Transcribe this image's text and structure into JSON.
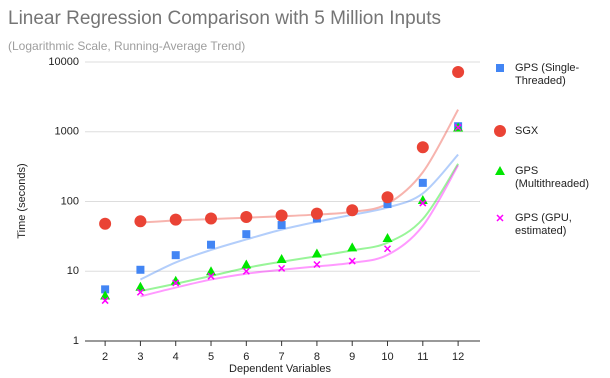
{
  "chart_data": {
    "type": "scatter",
    "title": "Linear Regression Comparison with 5 Million Inputs",
    "subtitle": "(Logarithmic Scale, Running-Average Trend)",
    "x_label": "Dependent Variables",
    "y_label": "Time (seconds)",
    "x": [
      2,
      3,
      4,
      5,
      6,
      7,
      8,
      9,
      10,
      11,
      12
    ],
    "xlim": [
      1.43,
      12.62
    ],
    "xticks": [
      2,
      3,
      4,
      5,
      6,
      7,
      8,
      9,
      10,
      11,
      12
    ],
    "ylim": [
      1,
      10000
    ],
    "yticks": [
      1,
      10,
      100,
      1000,
      10000
    ],
    "log_y": true,
    "grid": true,
    "trend": "running-average",
    "legend": "right",
    "series": [
      {
        "name": "GPS (Single-Threaded)",
        "color": "#4285f4",
        "marker": "square",
        "values": [
          5.5,
          10.5,
          17,
          24,
          34,
          46,
          57,
          73,
          92,
          185,
          1200
        ]
      },
      {
        "name": "SGX",
        "color": "#ea4335",
        "marker": "circle",
        "values": [
          48,
          52,
          55,
          57,
          60,
          63,
          67,
          75,
          115,
          600,
          7200
        ]
      },
      {
        "name": "GPS (Multithreaded)",
        "color": "#00e600",
        "marker": "triangle",
        "values": [
          4.5,
          6,
          7.3,
          10,
          12.5,
          15,
          18,
          22,
          30,
          105,
          1150
        ]
      },
      {
        "name": "GPS (GPU, estimated)",
        "color": "#ff00ff",
        "marker": "x",
        "values": [
          3.8,
          5,
          6.8,
          8.5,
          10,
          11,
          12.5,
          14,
          21,
          95,
          1150
        ]
      }
    ]
  }
}
